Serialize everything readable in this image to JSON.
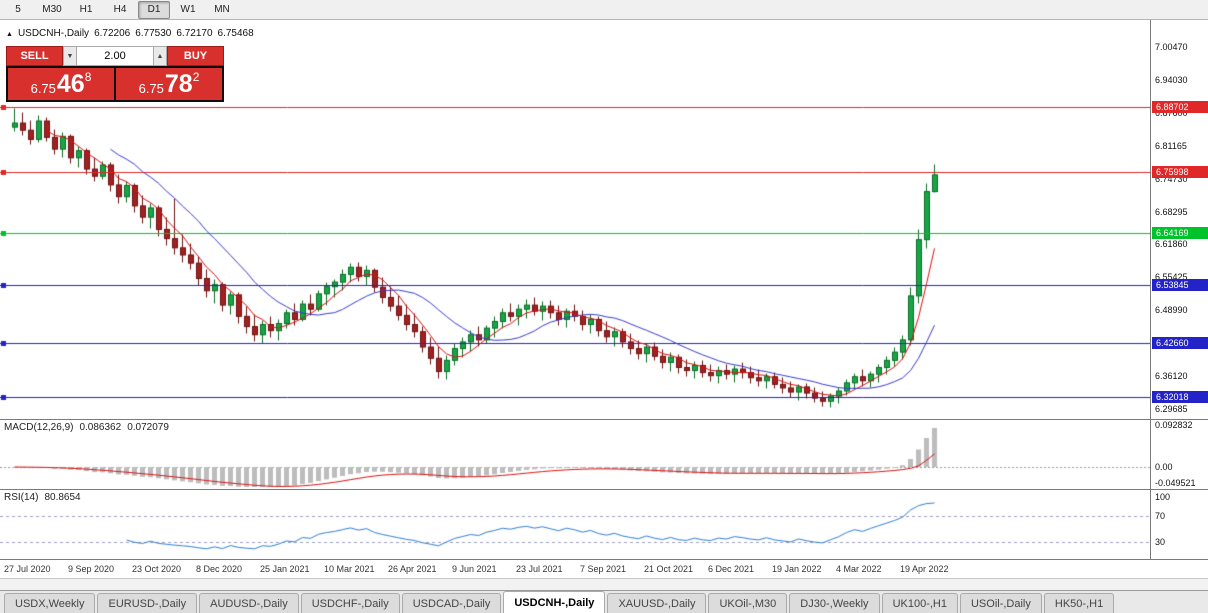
{
  "toolbar": {
    "timeframes": [
      {
        "label": "5",
        "active": false
      },
      {
        "label": "M30",
        "active": false
      },
      {
        "label": "H1",
        "active": false
      },
      {
        "label": "H4",
        "active": false
      },
      {
        "label": "D1",
        "active": true
      },
      {
        "label": "W1",
        "active": false
      },
      {
        "label": "MN",
        "active": false
      }
    ]
  },
  "chart_header": {
    "collapse_icon": "▲",
    "symbol_period": "USDCNH-,Daily",
    "open": "6.72206",
    "high": "6.77530",
    "low": "6.72170",
    "close": "6.75468"
  },
  "trade_panel": {
    "sell_label": "SELL",
    "buy_label": "BUY",
    "lot_value": "2.00",
    "spin_down_icon": "▼",
    "spin_up_icon": "▲",
    "sell": {
      "prefix": "6.75",
      "big": "46",
      "sup": "8"
    },
    "buy": {
      "prefix": "6.75",
      "big": "78",
      "sup": "2"
    }
  },
  "colors": {
    "trade_red": "#d8302c",
    "line_red": "#e02828",
    "line_green": "#00c32b",
    "line_blue": "#2323c8",
    "candle_up_fill": "#18a548",
    "candle_up_stroke": "#0a6e24",
    "candle_down_fill": "#a32020",
    "candle_down_stroke": "#6e1212",
    "ma_red": "#dd1111",
    "ma_blue": "#3a3ad0",
    "macd_hist": "#bdbdbd",
    "macd_signal": "#dd1111",
    "rsi_blue": "#2f7fd6",
    "rsi_level": "#a0a0c8"
  },
  "tabs": {
    "items": [
      {
        "label": "USDX,Weekly",
        "active": false
      },
      {
        "label": "EURUSD-,Daily",
        "active": false
      },
      {
        "label": "AUDUSD-,Daily",
        "active": false
      },
      {
        "label": "USDCHF-,Daily",
        "active": false
      },
      {
        "label": "USDCAD-,Daily",
        "active": false
      },
      {
        "label": "USDCNH-,Daily",
        "active": true
      },
      {
        "label": "XAUUSD-,Daily",
        "active": false
      },
      {
        "label": "UKOil-,M30",
        "active": false
      },
      {
        "label": "DJ30-,Weekly",
        "active": false
      },
      {
        "label": "UK100-,H1",
        "active": false
      },
      {
        "label": "USOil-,Daily",
        "active": false
      },
      {
        "label": "HK50-,H1",
        "active": false
      }
    ]
  },
  "chart_data": [
    {
      "type": "candlestick",
      "symbol": "USDCNH-",
      "timeframe": "Daily",
      "last_ohlc": {
        "open": 6.72206,
        "high": 6.7753,
        "low": 6.7217,
        "close": 6.75468
      },
      "y_axis": {
        "view_range": [
          6.2773,
          7.0575
        ],
        "ticks": [
          7.0047,
          6.9403,
          6.876,
          6.81165,
          6.7473,
          6.68295,
          6.6186,
          6.55425,
          6.4899,
          6.42555,
          6.3612,
          6.29685
        ]
      },
      "x_tick_labels": [
        "27 Jul 2020",
        "9 Sep 2020",
        "23 Oct 2020",
        "8 Dec 2020",
        "25 Jan 2021",
        "10 Mar 2021",
        "26 Apr 2021",
        "9 Jun 2021",
        "23 Jul 2021",
        "7 Sep 2021",
        "21 Oct 2021",
        "6 Dec 2021",
        "19 Jan 2022",
        "4 Mar 2022",
        "19 Apr 2022"
      ],
      "horizontal_lines": [
        {
          "price": 6.88702,
          "color": "#e02828"
        },
        {
          "price": 6.75998,
          "color": "#e02828"
        },
        {
          "price": 6.64169,
          "color": "#00c32b"
        },
        {
          "price": 6.53845,
          "color": "#2323c8"
        },
        {
          "price": 6.4266,
          "color": "#2323c8"
        },
        {
          "price": 6.32018,
          "color": "#2323c8"
        }
      ],
      "moving_averages": [
        {
          "period": 5,
          "color": "#dd1111"
        },
        {
          "period": 13,
          "color": "#3a3ad0"
        }
      ],
      "candles": [
        [
          6.848,
          6.885,
          6.84,
          6.856
        ],
        [
          6.856,
          6.878,
          6.832,
          6.842
        ],
        [
          6.842,
          6.862,
          6.815,
          6.824
        ],
        [
          6.824,
          6.871,
          6.818,
          6.86
        ],
        [
          6.86,
          6.868,
          6.82,
          6.828
        ],
        [
          6.828,
          6.845,
          6.796,
          6.805
        ],
        [
          6.805,
          6.838,
          6.79,
          6.83
        ],
        [
          6.83,
          6.835,
          6.778,
          6.788
        ],
        [
          6.788,
          6.812,
          6.77,
          6.802
        ],
        [
          6.802,
          6.808,
          6.756,
          6.766
        ],
        [
          6.766,
          6.79,
          6.742,
          6.752
        ],
        [
          6.752,
          6.782,
          6.746,
          6.774
        ],
        [
          6.774,
          6.78,
          6.724,
          6.735
        ],
        [
          6.735,
          6.756,
          6.7,
          6.712
        ],
        [
          6.712,
          6.742,
          6.702,
          6.734
        ],
        [
          6.734,
          6.738,
          6.682,
          6.694
        ],
        [
          6.694,
          6.716,
          6.66,
          6.672
        ],
        [
          6.672,
          6.7,
          6.65,
          6.69
        ],
        [
          6.69,
          6.695,
          6.636,
          6.648
        ],
        [
          6.648,
          6.672,
          6.618,
          6.63
        ],
        [
          6.63,
          6.71,
          6.6,
          6.612
        ],
        [
          6.612,
          6.64,
          6.585,
          6.598
        ],
        [
          6.598,
          6.622,
          6.57,
          6.582
        ],
        [
          6.582,
          6.596,
          6.54,
          6.552
        ],
        [
          6.552,
          6.57,
          6.515,
          6.528
        ],
        [
          6.528,
          6.552,
          6.505,
          6.54
        ],
        [
          6.54,
          6.545,
          6.488,
          6.5
        ],
        [
          6.5,
          6.528,
          6.482,
          6.52
        ],
        [
          6.52,
          6.525,
          6.465,
          6.478
        ],
        [
          6.478,
          6.498,
          6.445,
          6.458
        ],
        [
          6.458,
          6.482,
          6.43,
          6.442
        ],
        [
          6.442,
          6.47,
          6.425,
          6.462
        ],
        [
          6.462,
          6.478,
          6.438,
          6.45
        ],
        [
          6.45,
          6.472,
          6.432,
          6.464
        ],
        [
          6.464,
          6.492,
          6.455,
          6.485
        ],
        [
          6.485,
          6.505,
          6.462,
          6.472
        ],
        [
          6.472,
          6.51,
          6.468,
          6.502
        ],
        [
          6.502,
          6.522,
          6.48,
          6.492
        ],
        [
          6.492,
          6.53,
          6.488,
          6.522
        ],
        [
          6.522,
          6.545,
          6.5,
          6.536
        ],
        [
          6.536,
          6.552,
          6.515,
          6.545
        ],
        [
          6.545,
          6.57,
          6.53,
          6.56
        ],
        [
          6.56,
          6.582,
          6.545,
          6.574
        ],
        [
          6.574,
          6.585,
          6.548,
          6.556
        ],
        [
          6.556,
          6.578,
          6.54,
          6.568
        ],
        [
          6.568,
          6.572,
          6.525,
          6.535
        ],
        [
          6.535,
          6.555,
          6.505,
          6.515
        ],
        [
          6.515,
          6.538,
          6.488,
          6.498
        ],
        [
          6.498,
          6.52,
          6.47,
          6.48
        ],
        [
          6.48,
          6.502,
          6.452,
          6.462
        ],
        [
          6.462,
          6.485,
          6.438,
          6.448
        ],
        [
          6.448,
          6.46,
          6.408,
          6.418
        ],
        [
          6.418,
          6.438,
          6.385,
          6.396
        ],
        [
          6.396,
          6.42,
          6.358,
          6.37
        ],
        [
          6.37,
          6.402,
          6.355,
          6.392
        ],
        [
          6.392,
          6.425,
          6.382,
          6.415
        ],
        [
          6.415,
          6.438,
          6.398,
          6.428
        ],
        [
          6.428,
          6.452,
          6.41,
          6.442
        ],
        [
          6.442,
          6.46,
          6.42,
          6.432
        ],
        [
          6.432,
          6.462,
          6.425,
          6.455
        ],
        [
          6.455,
          6.478,
          6.438,
          6.468
        ],
        [
          6.468,
          6.495,
          6.455,
          6.485
        ],
        [
          6.485,
          6.505,
          6.468,
          6.478
        ],
        [
          6.478,
          6.502,
          6.462,
          6.492
        ],
        [
          6.492,
          6.512,
          6.475,
          6.5
        ],
        [
          6.5,
          6.515,
          6.48,
          6.488
        ],
        [
          6.488,
          6.508,
          6.47,
          6.498
        ],
        [
          6.498,
          6.51,
          6.475,
          6.485
        ],
        [
          6.485,
          6.5,
          6.462,
          6.472
        ],
        [
          6.472,
          6.495,
          6.458,
          6.488
        ],
        [
          6.488,
          6.502,
          6.468,
          6.478
        ],
        [
          6.478,
          6.49,
          6.452,
          6.462
        ],
        [
          6.462,
          6.482,
          6.445,
          6.472
        ],
        [
          6.472,
          6.478,
          6.44,
          6.45
        ],
        [
          6.45,
          6.468,
          6.428,
          6.438
        ],
        [
          6.438,
          6.458,
          6.42,
          6.448
        ],
        [
          6.448,
          6.455,
          6.418,
          6.428
        ],
        [
          6.428,
          6.445,
          6.405,
          6.415
        ],
        [
          6.415,
          6.432,
          6.395,
          6.405
        ],
        [
          6.405,
          6.425,
          6.388,
          6.418
        ],
        [
          6.418,
          6.428,
          6.392,
          6.4
        ],
        [
          6.4,
          6.415,
          6.378,
          6.388
        ],
        [
          6.388,
          6.408,
          6.372,
          6.398
        ],
        [
          6.398,
          6.405,
          6.368,
          6.378
        ],
        [
          6.378,
          6.395,
          6.362,
          6.372
        ],
        [
          6.372,
          6.39,
          6.358,
          6.382
        ],
        [
          6.382,
          6.392,
          6.36,
          6.368
        ],
        [
          6.368,
          6.385,
          6.352,
          6.362
        ],
        [
          6.362,
          6.38,
          6.348,
          6.372
        ],
        [
          6.372,
          6.385,
          6.355,
          6.365
        ],
        [
          6.365,
          6.382,
          6.35,
          6.375
        ],
        [
          6.375,
          6.388,
          6.358,
          6.368
        ],
        [
          6.368,
          6.38,
          6.348,
          6.358
        ],
        [
          6.358,
          6.375,
          6.342,
          6.352
        ],
        [
          6.352,
          6.368,
          6.338,
          6.36
        ],
        [
          6.36,
          6.37,
          6.338,
          6.345
        ],
        [
          6.345,
          6.36,
          6.328,
          6.338
        ],
        [
          6.338,
          6.352,
          6.32,
          6.33
        ],
        [
          6.33,
          6.345,
          6.315,
          6.34
        ],
        [
          6.34,
          6.348,
          6.318,
          6.328
        ],
        [
          6.328,
          6.34,
          6.31,
          6.318
        ],
        [
          6.318,
          6.332,
          6.302,
          6.312
        ],
        [
          6.312,
          6.328,
          6.3,
          6.322
        ],
        [
          6.322,
          6.34,
          6.308,
          6.332
        ],
        [
          6.332,
          6.355,
          6.325,
          6.348
        ],
        [
          6.348,
          6.368,
          6.335,
          6.36
        ],
        [
          6.36,
          6.375,
          6.342,
          6.352
        ],
        [
          6.352,
          6.372,
          6.34,
          6.365
        ],
        [
          6.365,
          6.385,
          6.35,
          6.378
        ],
        [
          6.378,
          6.4,
          6.365,
          6.392
        ],
        [
          6.392,
          6.418,
          6.38,
          6.408
        ],
        [
          6.408,
          6.442,
          6.395,
          6.432
        ],
        [
          6.432,
          6.535,
          6.422,
          6.518
        ],
        [
          6.518,
          6.648,
          6.505,
          6.628
        ],
        [
          6.628,
          6.738,
          6.612,
          6.722
        ],
        [
          6.722,
          6.7753,
          6.7217,
          6.7547
        ]
      ]
    },
    {
      "type": "macd",
      "label": "MACD(12,26,9)",
      "params": [
        12,
        26,
        9
      ],
      "macd_value": "0.086362",
      "signal_value": "0.072079",
      "y_ticks": [
        {
          "value": 0.092832,
          "label": "0.092832"
        },
        {
          "value": 0,
          "label": "0.00"
        },
        {
          "value": -0.049521,
          "label": "-0.049521"
        }
      ]
    },
    {
      "type": "rsi",
      "label": "RSI(14)",
      "period": 14,
      "value_text": "80.8654",
      "levels": [
        30,
        70
      ],
      "y_ticks": [
        {
          "value": 100,
          "label": "100"
        },
        {
          "value": 70,
          "label": "70"
        },
        {
          "value": 30,
          "label": "30"
        }
      ]
    }
  ]
}
